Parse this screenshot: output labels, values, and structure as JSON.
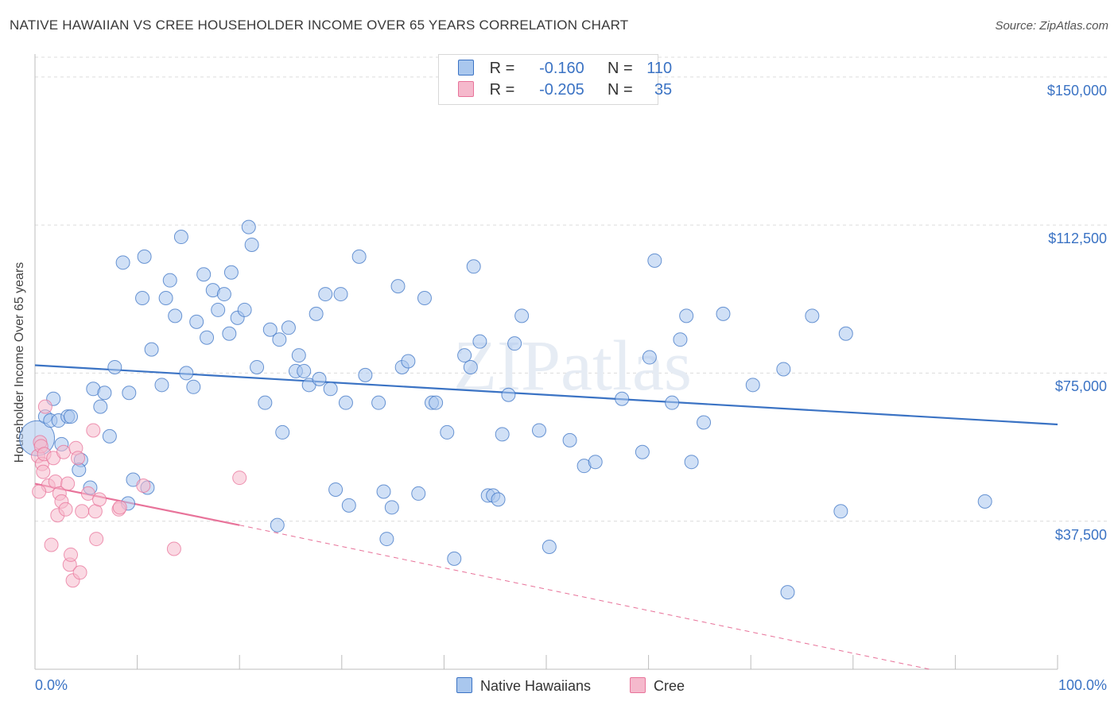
{
  "title": "NATIVE HAWAIIAN VS CREE HOUSEHOLDER INCOME OVER 65 YEARS CORRELATION CHART",
  "source": "Source: ZipAtlas.com",
  "watermark": "ZIPatlas",
  "legend": {
    "rows": [
      {
        "r_label": "R =",
        "r_value": "-0.160",
        "n_label": "N =",
        "n_value": "110"
      },
      {
        "r_label": "R =",
        "r_value": "-0.205",
        "n_label": "N =",
        "n_value": "35"
      }
    ]
  },
  "bottom_legend": [
    "Native Hawaiians",
    "Cree"
  ],
  "colors": {
    "blue": "#3b73c4",
    "blue_fill": "#a9c7ee",
    "pink": "#e8739a",
    "pink_fill": "#f5b9cc"
  },
  "chart_data": {
    "type": "scatter",
    "title": "NATIVE HAWAIIAN VS CREE HOUSEHOLDER INCOME OVER 65 YEARS CORRELATION CHART",
    "xlabel": "",
    "ylabel": "Householder Income Over 65 years",
    "xlim": [
      0,
      100
    ],
    "ylim": [
      0,
      155000
    ],
    "x_tick_labels": [
      "0.0%",
      "100.0%"
    ],
    "y_ticks": [
      37500,
      75000,
      112500,
      150000
    ],
    "y_tick_labels": [
      "$37,500",
      "$75,000",
      "$112,500",
      "$150,000"
    ],
    "grid": true,
    "legend_position": "top-center",
    "series": [
      {
        "name": "Native Hawaiians",
        "color": "#3b73c4",
        "trend": {
          "x": [
            0,
            100
          ],
          "y": [
            77000,
            62000
          ]
        },
        "points": [
          [
            0.2,
            58500
          ],
          [
            1,
            64000
          ],
          [
            1.5,
            63000
          ],
          [
            1.8,
            68500
          ],
          [
            2.3,
            63000
          ],
          [
            3.2,
            64000
          ],
          [
            3.5,
            64000
          ],
          [
            2.6,
            57000
          ],
          [
            4.5,
            53000
          ],
          [
            4.3,
            50500
          ],
          [
            5.4,
            46000
          ],
          [
            5.7,
            71000
          ],
          [
            6.4,
            66500
          ],
          [
            6.8,
            70000
          ],
          [
            7.3,
            59000
          ],
          [
            7.8,
            76500
          ],
          [
            8.6,
            103000
          ],
          [
            9.2,
            70000
          ],
          [
            9.1,
            42000
          ],
          [
            9.6,
            48000
          ],
          [
            10.5,
            94000
          ],
          [
            10.7,
            104500
          ],
          [
            11,
            46000
          ],
          [
            11.4,
            81000
          ],
          [
            12.4,
            72000
          ],
          [
            12.8,
            94000
          ],
          [
            13.2,
            98500
          ],
          [
            13.7,
            89500
          ],
          [
            14.3,
            109500
          ],
          [
            14.8,
            75000
          ],
          [
            15.5,
            71500
          ],
          [
            15.8,
            88000
          ],
          [
            16.5,
            100000
          ],
          [
            16.8,
            84000
          ],
          [
            17.4,
            96000
          ],
          [
            17.9,
            91000
          ],
          [
            18.5,
            95000
          ],
          [
            19,
            85000
          ],
          [
            19.2,
            100500
          ],
          [
            19.8,
            89000
          ],
          [
            20.5,
            91000
          ],
          [
            20.9,
            112000
          ],
          [
            21.2,
            107500
          ],
          [
            21.7,
            76500
          ],
          [
            22.5,
            67500
          ],
          [
            23,
            86000
          ],
          [
            23.7,
            36500
          ],
          [
            23.9,
            83500
          ],
          [
            24.2,
            60000
          ],
          [
            24.8,
            86500
          ],
          [
            25.5,
            75500
          ],
          [
            25.8,
            79500
          ],
          [
            26.3,
            75500
          ],
          [
            26.8,
            72000
          ],
          [
            27.5,
            90000
          ],
          [
            27.8,
            73500
          ],
          [
            28.4,
            95000
          ],
          [
            28.9,
            71000
          ],
          [
            29.4,
            45500
          ],
          [
            29.9,
            95000
          ],
          [
            30.4,
            67500
          ],
          [
            30.7,
            41500
          ],
          [
            31.7,
            104500
          ],
          [
            32.3,
            74500
          ],
          [
            33.6,
            67500
          ],
          [
            34.1,
            45000
          ],
          [
            34.4,
            33000
          ],
          [
            34.9,
            41000
          ],
          [
            35.5,
            97000
          ],
          [
            35.9,
            76500
          ],
          [
            36.5,
            78000
          ],
          [
            37.5,
            44500
          ],
          [
            38.1,
            94000
          ],
          [
            38.8,
            67500
          ],
          [
            39.2,
            67500
          ],
          [
            40.3,
            60000
          ],
          [
            41,
            28000
          ],
          [
            42,
            79500
          ],
          [
            42.6,
            76500
          ],
          [
            42.9,
            102000
          ],
          [
            43.5,
            83000
          ],
          [
            44.3,
            44000
          ],
          [
            44.8,
            44000
          ],
          [
            45.3,
            43000
          ],
          [
            45.7,
            59500
          ],
          [
            46.3,
            69500
          ],
          [
            46.9,
            82500
          ],
          [
            47.6,
            89500
          ],
          [
            49.3,
            60500
          ],
          [
            50.3,
            31000
          ],
          [
            52.3,
            58000
          ],
          [
            53.7,
            51500
          ],
          [
            54.8,
            52500
          ],
          [
            57.4,
            68500
          ],
          [
            59.4,
            55000
          ],
          [
            60.1,
            79000
          ],
          [
            60.6,
            103500
          ],
          [
            62.3,
            67500
          ],
          [
            63.1,
            83500
          ],
          [
            63.7,
            89500
          ],
          [
            64.2,
            52500
          ],
          [
            65.4,
            62500
          ],
          [
            67.3,
            90000
          ],
          [
            70.2,
            72000
          ],
          [
            73.2,
            76000
          ],
          [
            73.6,
            19500
          ],
          [
            76,
            89500
          ],
          [
            78.8,
            40000
          ],
          [
            79.3,
            85000
          ],
          [
            92.9,
            42500
          ]
        ]
      },
      {
        "name": "Cree",
        "color": "#e8739a",
        "trend": {
          "x": [
            0,
            20
          ],
          "y": [
            47000,
            36500
          ],
          "dashed_to": {
            "x": 87.5,
            "y": 0
          }
        },
        "points": [
          [
            0.3,
            54000
          ],
          [
            0.5,
            57500
          ],
          [
            0.6,
            56500
          ],
          [
            0.7,
            52000
          ],
          [
            0.9,
            54500
          ],
          [
            1,
            66500
          ],
          [
            1.3,
            46500
          ],
          [
            1.6,
            31500
          ],
          [
            1.8,
            53500
          ],
          [
            2,
            47500
          ],
          [
            2.2,
            39000
          ],
          [
            2.4,
            44500
          ],
          [
            2.6,
            42500
          ],
          [
            2.8,
            55000
          ],
          [
            3,
            40500
          ],
          [
            3.2,
            47000
          ],
          [
            3.4,
            26500
          ],
          [
            3.5,
            29000
          ],
          [
            3.7,
            22500
          ],
          [
            4,
            56000
          ],
          [
            4.2,
            53500
          ],
          [
            4.4,
            24500
          ],
          [
            4.6,
            40000
          ],
          [
            5.2,
            44500
          ],
          [
            5.7,
            60500
          ],
          [
            5.9,
            40000
          ],
          [
            6,
            33000
          ],
          [
            6.3,
            43000
          ],
          [
            8.2,
            40500
          ],
          [
            8.3,
            41000
          ],
          [
            10.6,
            46500
          ],
          [
            13.6,
            30500
          ],
          [
            20,
            48500
          ],
          [
            0.4,
            45000
          ],
          [
            0.8,
            50000
          ]
        ]
      }
    ]
  }
}
